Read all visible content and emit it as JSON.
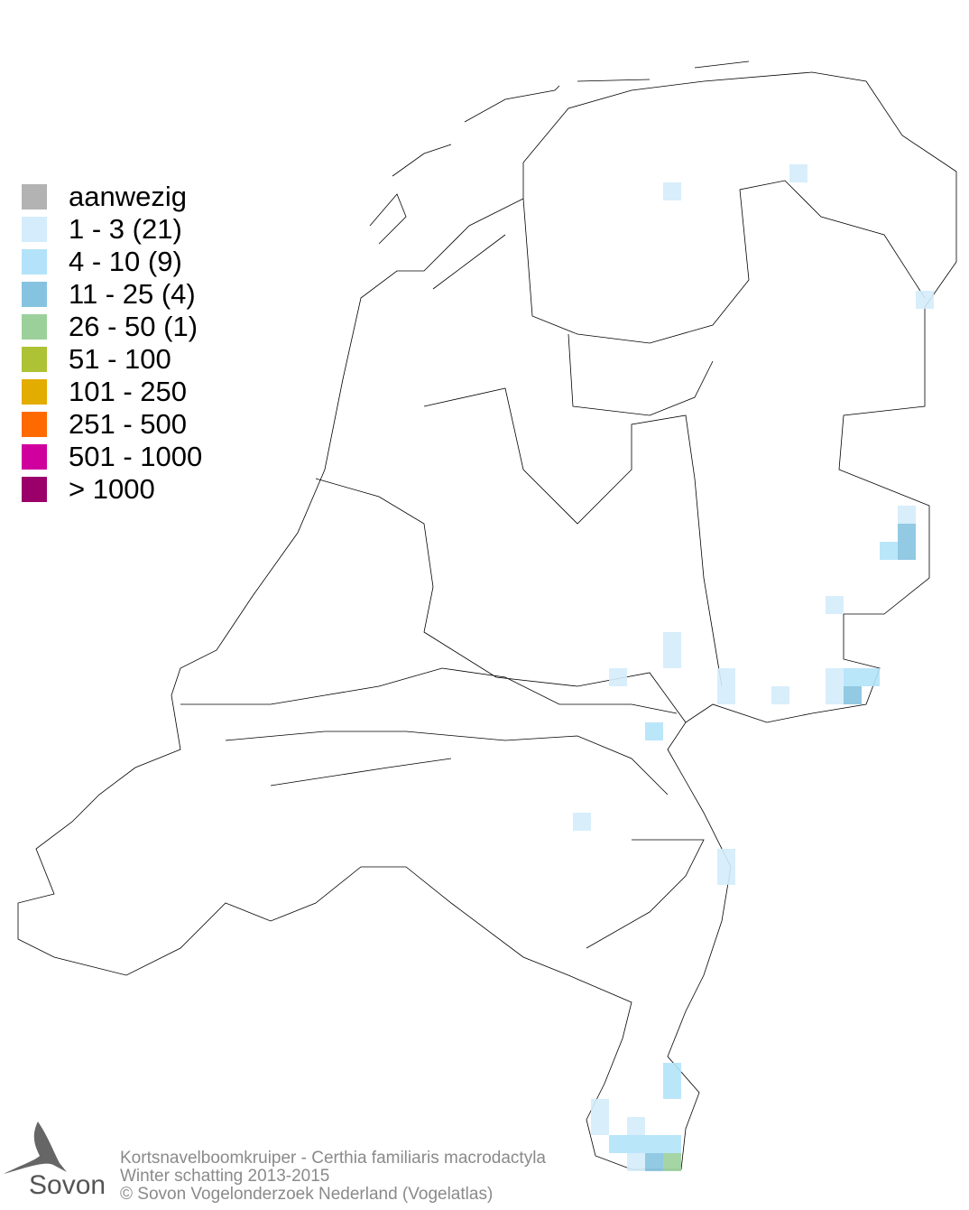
{
  "legend": [
    {
      "label": "aanwezig",
      "color": "#b3b3b3"
    },
    {
      "label": "1 - 3 (21)",
      "color": "#d4ecfb"
    },
    {
      "label": "4 - 10 (9)",
      "color": "#b3e3fa"
    },
    {
      "label": "11 - 25 (4)",
      "color": "#86c3e0"
    },
    {
      "label": "26 - 50 (1)",
      "color": "#9bd09b"
    },
    {
      "label": "51 - 100",
      "color": "#adc234"
    },
    {
      "label": "101 - 250",
      "color": "#e3ac00"
    },
    {
      "label": "251 - 500",
      "color": "#ff6a00"
    },
    {
      "label": "501 - 1000",
      "color": "#d0009f"
    },
    {
      "label": "> 1000",
      "color": "#9b006a"
    }
  ],
  "footer": {
    "species": "Kortsnavelboomkruiper - Certhia familiaris macrodactyla",
    "period": "Winter schatting 2013-2015",
    "copyright": "© Sovon Vogelonderzoek Nederland (Vogelatlas)"
  },
  "logo": {
    "text": "Sovon"
  }
}
